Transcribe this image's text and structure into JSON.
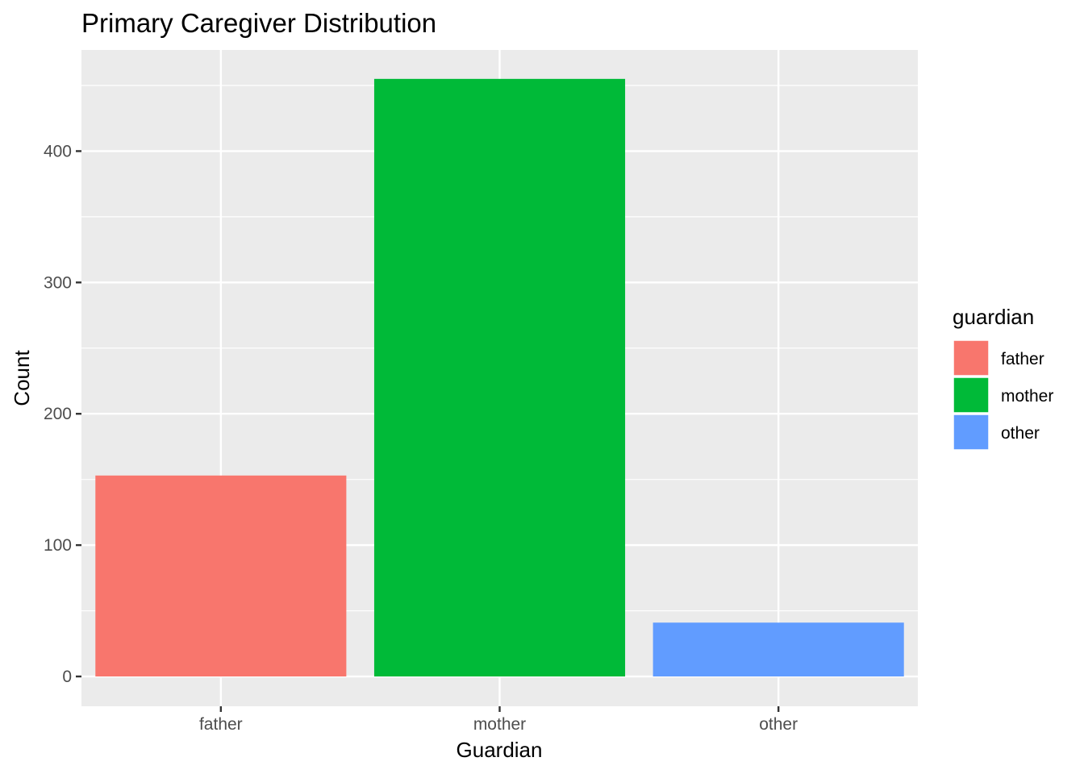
{
  "chart_data": {
    "type": "bar",
    "title": "Primary Caregiver Distribution",
    "xlabel": "Guardian",
    "ylabel": "Count",
    "categories": [
      "father",
      "mother",
      "other"
    ],
    "values": [
      153,
      455,
      41
    ],
    "colors": [
      "#F8766D",
      "#00BA38",
      "#619CFF"
    ],
    "ylim": [
      0,
      477
    ],
    "yticks": [
      0,
      100,
      200,
      300,
      400
    ],
    "ytick_labels": [
      "0",
      "100",
      "200",
      "300",
      "400"
    ],
    "grid": true,
    "panel_background": "#EBEBEB",
    "legend": {
      "title": "guardian",
      "placement": "right",
      "items": [
        "father",
        "mother",
        "other"
      ]
    }
  }
}
